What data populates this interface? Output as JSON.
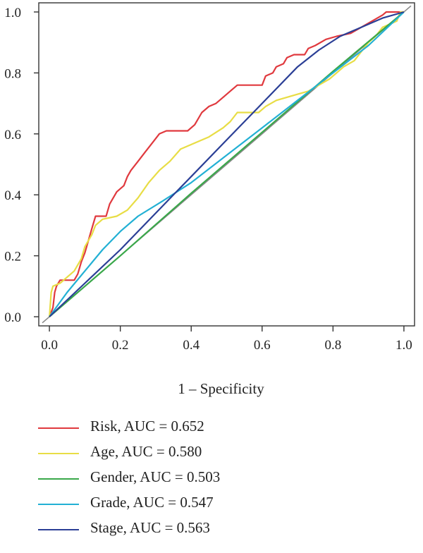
{
  "chart_data": {
    "type": "line",
    "xlabel": "1 – Specificity",
    "ylabel": "",
    "xlim": [
      -0.03,
      1.03
    ],
    "ylim": [
      -0.03,
      1.03
    ],
    "x_ticks": [
      "0.0",
      "0.2",
      "0.4",
      "0.6",
      "0.8",
      "1.0"
    ],
    "y_ticks": [
      "0.0",
      "0.2",
      "0.4",
      "0.6",
      "0.8",
      "1.0"
    ],
    "grid": false,
    "legend_position": "bottom",
    "reference_line": {
      "from": [
        0,
        0
      ],
      "to": [
        1,
        1
      ],
      "color": "#888888"
    },
    "series": [
      {
        "name": "Risk, AUC = 0.652",
        "color": "#e0393e",
        "points": [
          [
            0,
            0
          ],
          [
            0.01,
            0.03
          ],
          [
            0.015,
            0.08
          ],
          [
            0.02,
            0.1
          ],
          [
            0.03,
            0.12
          ],
          [
            0.07,
            0.12
          ],
          [
            0.08,
            0.14
          ],
          [
            0.09,
            0.18
          ],
          [
            0.1,
            0.21
          ],
          [
            0.11,
            0.25
          ],
          [
            0.12,
            0.29
          ],
          [
            0.13,
            0.33
          ],
          [
            0.16,
            0.33
          ],
          [
            0.17,
            0.37
          ],
          [
            0.19,
            0.41
          ],
          [
            0.21,
            0.43
          ],
          [
            0.22,
            0.46
          ],
          [
            0.23,
            0.48
          ],
          [
            0.25,
            0.51
          ],
          [
            0.27,
            0.54
          ],
          [
            0.29,
            0.57
          ],
          [
            0.31,
            0.6
          ],
          [
            0.33,
            0.61
          ],
          [
            0.39,
            0.61
          ],
          [
            0.41,
            0.63
          ],
          [
            0.43,
            0.67
          ],
          [
            0.45,
            0.69
          ],
          [
            0.47,
            0.7
          ],
          [
            0.49,
            0.72
          ],
          [
            0.51,
            0.74
          ],
          [
            0.53,
            0.76
          ],
          [
            0.6,
            0.76
          ],
          [
            0.61,
            0.79
          ],
          [
            0.63,
            0.8
          ],
          [
            0.64,
            0.82
          ],
          [
            0.66,
            0.83
          ],
          [
            0.67,
            0.85
          ],
          [
            0.69,
            0.86
          ],
          [
            0.72,
            0.86
          ],
          [
            0.73,
            0.88
          ],
          [
            0.75,
            0.89
          ],
          [
            0.78,
            0.91
          ],
          [
            0.81,
            0.92
          ],
          [
            0.85,
            0.93
          ],
          [
            0.88,
            0.95
          ],
          [
            0.91,
            0.97
          ],
          [
            0.94,
            0.99
          ],
          [
            0.95,
            1.0
          ],
          [
            1.0,
            1.0
          ]
        ]
      },
      {
        "name": "Age, AUC = 0.580",
        "color": "#e8dd45",
        "points": [
          [
            0,
            0
          ],
          [
            0.005,
            0.08
          ],
          [
            0.01,
            0.1
          ],
          [
            0.03,
            0.11
          ],
          [
            0.05,
            0.13
          ],
          [
            0.07,
            0.15
          ],
          [
            0.09,
            0.19
          ],
          [
            0.1,
            0.23
          ],
          [
            0.12,
            0.27
          ],
          [
            0.13,
            0.3
          ],
          [
            0.15,
            0.32
          ],
          [
            0.19,
            0.33
          ],
          [
            0.22,
            0.35
          ],
          [
            0.25,
            0.39
          ],
          [
            0.28,
            0.44
          ],
          [
            0.31,
            0.48
          ],
          [
            0.34,
            0.51
          ],
          [
            0.37,
            0.55
          ],
          [
            0.41,
            0.57
          ],
          [
            0.45,
            0.59
          ],
          [
            0.49,
            0.62
          ],
          [
            0.51,
            0.64
          ],
          [
            0.53,
            0.67
          ],
          [
            0.56,
            0.67
          ],
          [
            0.59,
            0.67
          ],
          [
            0.61,
            0.69
          ],
          [
            0.64,
            0.71
          ],
          [
            0.67,
            0.72
          ],
          [
            0.7,
            0.73
          ],
          [
            0.73,
            0.74
          ],
          [
            0.76,
            0.76
          ],
          [
            0.79,
            0.78
          ],
          [
            0.81,
            0.8
          ],
          [
            0.83,
            0.82
          ],
          [
            0.86,
            0.84
          ],
          [
            0.88,
            0.87
          ],
          [
            0.9,
            0.9
          ],
          [
            0.92,
            0.92
          ],
          [
            0.94,
            0.95
          ],
          [
            0.96,
            0.96
          ],
          [
            0.98,
            0.97
          ],
          [
            0.99,
            1.0
          ],
          [
            1.0,
            1.0
          ]
        ]
      },
      {
        "name": "Gender, AUC = 0.503",
        "color": "#3aa84a",
        "points": [
          [
            0,
            0
          ],
          [
            0.2,
            0.2
          ],
          [
            0.4,
            0.405
          ],
          [
            0.6,
            0.605
          ],
          [
            0.8,
            0.805
          ],
          [
            1.0,
            1.0
          ]
        ]
      },
      {
        "name": "Grade, AUC = 0.547",
        "color": "#22b0d4",
        "points": [
          [
            0,
            0
          ],
          [
            0.05,
            0.08
          ],
          [
            0.1,
            0.15
          ],
          [
            0.15,
            0.22
          ],
          [
            0.2,
            0.28
          ],
          [
            0.25,
            0.33
          ],
          [
            0.32,
            0.38
          ],
          [
            0.4,
            0.44
          ],
          [
            0.5,
            0.53
          ],
          [
            0.6,
            0.62
          ],
          [
            0.7,
            0.71
          ],
          [
            0.8,
            0.8
          ],
          [
            0.9,
            0.89
          ],
          [
            1.0,
            1.0
          ]
        ]
      },
      {
        "name": "Stage, AUC = 0.563",
        "color": "#2b3f96",
        "points": [
          [
            0,
            0
          ],
          [
            0.1,
            0.11
          ],
          [
            0.2,
            0.22
          ],
          [
            0.3,
            0.34
          ],
          [
            0.4,
            0.46
          ],
          [
            0.5,
            0.58
          ],
          [
            0.6,
            0.7
          ],
          [
            0.7,
            0.82
          ],
          [
            0.76,
            0.875
          ],
          [
            0.82,
            0.92
          ],
          [
            0.88,
            0.95
          ],
          [
            0.94,
            0.98
          ],
          [
            1.0,
            1.0
          ]
        ]
      }
    ]
  }
}
